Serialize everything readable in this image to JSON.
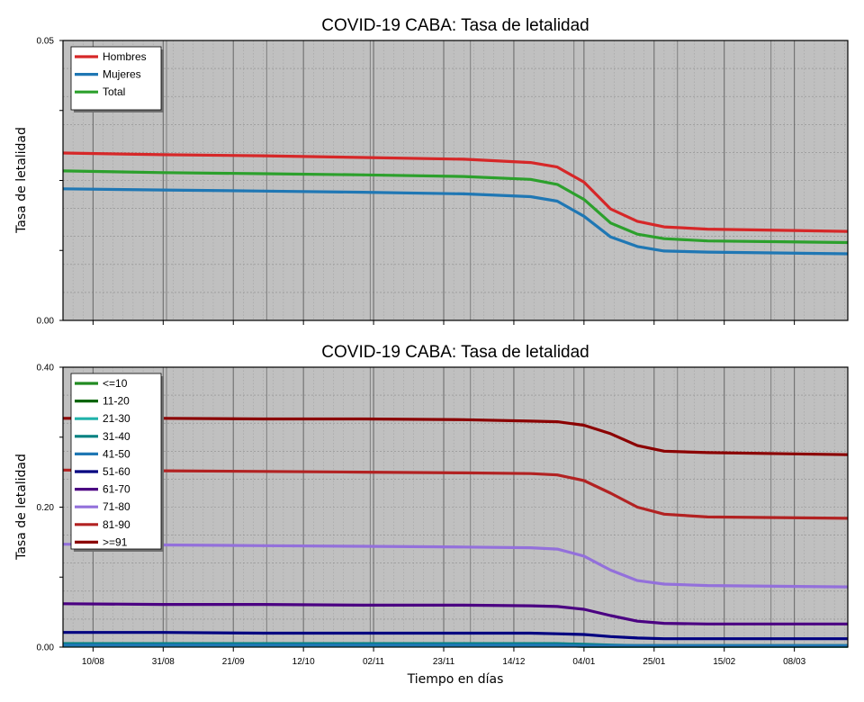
{
  "x_axis_label": "Tiempo en días",
  "x_tick_labels": [
    "10/08",
    "31/08",
    "21/09",
    "12/10",
    "02/11",
    "23/11",
    "14/12",
    "04/01",
    "25/01",
    "15/02",
    "08/03"
  ],
  "chart_data": [
    {
      "type": "line",
      "title": "COVID-19 CABA: Tasa de letalidad",
      "xlabel": "",
      "ylabel": "Tasa de letalidad",
      "x_range": [
        "2020-08-01",
        "2021-03-24"
      ],
      "ylim": [
        0.0,
        0.05
      ],
      "y_tick_labels": [
        "0.00",
        "0.05"
      ],
      "grid": true,
      "legend_position": "top-left",
      "x": [
        "2020-08-01",
        "2020-08-31",
        "2020-09-30",
        "2020-10-30",
        "2020-11-29",
        "2020-12-19",
        "2020-12-27",
        "2021-01-04",
        "2021-01-12",
        "2021-01-20",
        "2021-01-28",
        "2021-02-10",
        "2021-03-24"
      ],
      "series": [
        {
          "name": "Hombres",
          "color": "#d62728",
          "values": [
            0.0299,
            0.0296,
            0.0294,
            0.0291,
            0.0288,
            0.0282,
            0.0274,
            0.0247,
            0.0199,
            0.0177,
            0.0167,
            0.0163,
            0.0159
          ]
        },
        {
          "name": "Mujeres",
          "color": "#1f77b4",
          "values": [
            0.0235,
            0.0233,
            0.0231,
            0.0229,
            0.0226,
            0.0221,
            0.0213,
            0.0186,
            0.0149,
            0.0132,
            0.0124,
            0.0122,
            0.0119
          ]
        },
        {
          "name": "Total",
          "color": "#2ca02c",
          "values": [
            0.0267,
            0.0264,
            0.0262,
            0.026,
            0.0257,
            0.0252,
            0.0243,
            0.0216,
            0.0174,
            0.0154,
            0.0146,
            0.0142,
            0.0139
          ]
        }
      ]
    },
    {
      "type": "line",
      "title": "COVID-19 CABA: Tasa de letalidad",
      "xlabel": "Tiempo en días",
      "ylabel": "Tasa de letalidad",
      "x_range": [
        "2020-08-01",
        "2021-03-24"
      ],
      "ylim": [
        0.0,
        0.4
      ],
      "y_tick_labels": [
        "0.00",
        "0.20",
        "0.40"
      ],
      "grid": true,
      "legend_position": "top-left",
      "x": [
        "2020-08-01",
        "2020-08-31",
        "2020-09-30",
        "2020-10-30",
        "2020-11-29",
        "2020-12-19",
        "2020-12-27",
        "2021-01-04",
        "2021-01-12",
        "2021-01-20",
        "2021-01-28",
        "2021-02-10",
        "2021-03-24"
      ],
      "series": [
        {
          "name": "<=10",
          "color": "#228b22",
          "values": [
            0.003,
            0.003,
            0.003,
            0.003,
            0.003,
            0.003,
            0.003,
            0.002,
            0.002,
            0.002,
            0.002,
            0.002,
            0.002
          ]
        },
        {
          "name": "11-20",
          "color": "#006400",
          "values": [
            0.002,
            0.002,
            0.002,
            0.002,
            0.002,
            0.002,
            0.002,
            0.001,
            0.001,
            0.001,
            0.001,
            0.001,
            0.001
          ]
        },
        {
          "name": "21-30",
          "color": "#20b2aa",
          "values": [
            0.002,
            0.002,
            0.002,
            0.002,
            0.002,
            0.002,
            0.002,
            0.001,
            0.001,
            0.001,
            0.001,
            0.001,
            0.001
          ]
        },
        {
          "name": "31-40",
          "color": "#008080",
          "values": [
            0.005,
            0.005,
            0.005,
            0.005,
            0.005,
            0.005,
            0.005,
            0.004,
            0.003,
            0.002,
            0.002,
            0.002,
            0.002
          ]
        },
        {
          "name": "41-50",
          "color": "#1f77b4",
          "values": [
            0.003,
            0.003,
            0.003,
            0.003,
            0.003,
            0.003,
            0.003,
            0.002,
            0.002,
            0.002,
            0.002,
            0.002,
            0.002
          ]
        },
        {
          "name": "51-60",
          "color": "#000080",
          "values": [
            0.021,
            0.021,
            0.02,
            0.02,
            0.02,
            0.02,
            0.019,
            0.018,
            0.015,
            0.013,
            0.012,
            0.012,
            0.012
          ]
        },
        {
          "name": "61-70",
          "color": "#4b0082",
          "values": [
            0.062,
            0.061,
            0.061,
            0.06,
            0.06,
            0.059,
            0.058,
            0.054,
            0.045,
            0.037,
            0.034,
            0.033,
            0.033
          ]
        },
        {
          "name": "71-80",
          "color": "#9370db",
          "values": [
            0.147,
            0.146,
            0.145,
            0.144,
            0.143,
            0.142,
            0.14,
            0.13,
            0.11,
            0.095,
            0.09,
            0.088,
            0.086
          ]
        },
        {
          "name": "81-90",
          "color": "#b22222",
          "values": [
            0.253,
            0.252,
            0.251,
            0.25,
            0.249,
            0.248,
            0.246,
            0.238,
            0.22,
            0.2,
            0.19,
            0.186,
            0.184
          ]
        },
        {
          "name": ">=91",
          "color": "#8b0000",
          "values": [
            0.327,
            0.327,
            0.326,
            0.326,
            0.325,
            0.323,
            0.322,
            0.317,
            0.305,
            0.288,
            0.28,
            0.278,
            0.275
          ]
        }
      ]
    }
  ]
}
